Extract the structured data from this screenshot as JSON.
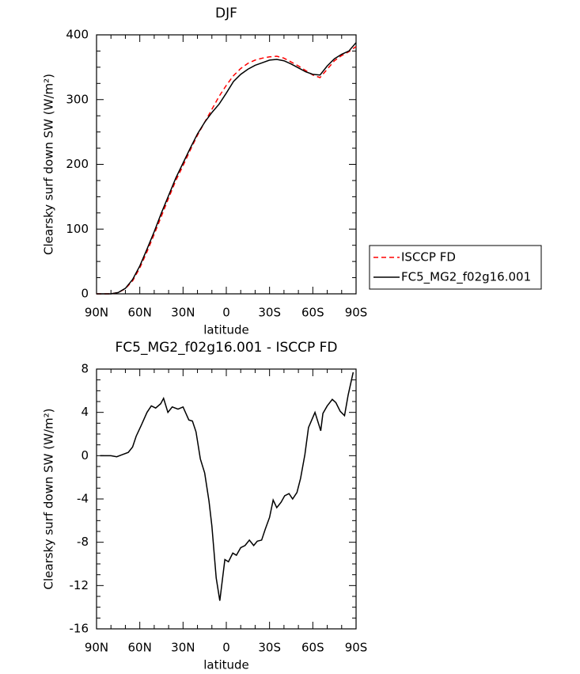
{
  "chart_data": [
    {
      "type": "line",
      "title": "DJF",
      "x_label": "latitude",
      "y_label": "Clearsky surf down SW (W/m²)",
      "x": [
        90,
        85,
        80,
        75,
        70,
        65,
        60,
        55,
        50,
        45,
        40,
        35,
        30,
        25,
        20,
        15,
        10,
        5,
        0,
        -5,
        -10,
        -15,
        -20,
        -25,
        -30,
        -35,
        -40,
        -45,
        -50,
        -55,
        -60,
        -65,
        -70,
        -75,
        -80,
        -85,
        -90
      ],
      "series": [
        {
          "name": "ISCCP FD",
          "color": "#ff0000",
          "style": "dashed",
          "values": [
            0,
            0,
            0,
            2,
            8,
            20,
            40,
            65,
            92,
            120,
            148,
            175,
            198,
            222,
            245,
            265,
            285,
            305,
            322,
            337,
            348,
            356,
            361,
            364,
            366,
            367,
            364,
            358,
            352,
            345,
            338,
            334,
            347,
            360,
            368,
            374,
            382
          ]
        },
        {
          "name": "FC5_MG2_f02g16.001",
          "color": "#000000",
          "style": "solid",
          "values": [
            0,
            0,
            0,
            2,
            8.5,
            22,
            43,
            69,
            96,
            125,
            152,
            179,
            202,
            225,
            247,
            265,
            280,
            293,
            310,
            328,
            339,
            347,
            353,
            357,
            361,
            362,
            360,
            355,
            349,
            343,
            339,
            338,
            352,
            363,
            370,
            375,
            388
          ]
        }
      ],
      "xlim": [
        90,
        -90
      ],
      "xticks": [
        {
          "value": 90,
          "label": "90N"
        },
        {
          "value": 60,
          "label": "60N"
        },
        {
          "value": 30,
          "label": "30N"
        },
        0,
        {
          "value": -30,
          "label": "30S"
        },
        {
          "value": -60,
          "label": "60S"
        },
        {
          "value": -90,
          "label": "90S"
        }
      ],
      "ylim": [
        0,
        400
      ],
      "yticks": [
        0,
        100,
        200,
        300,
        400
      ],
      "legend": "right"
    },
    {
      "type": "line",
      "title": "FC5_MG2_f02g16.001 - ISCCP FD",
      "x_label": "latitude",
      "y_label": "Clearsky surf down SW (W/m²)",
      "x": [
        87.5,
        80,
        76,
        72,
        68,
        65,
        62.5,
        59,
        55,
        52,
        49,
        45.5,
        43.5,
        40.5,
        37.5,
        33.5,
        30,
        26,
        23.5,
        21,
        18,
        15,
        12,
        10,
        7,
        4.5,
        1,
        -1.5,
        -4.5,
        -7,
        -10,
        -13,
        -16,
        -19,
        -21.5,
        -24.5,
        -27,
        -30,
        -32.5,
        -35,
        -38,
        -40.5,
        -43.5,
        -46,
        -49,
        -51.5,
        -54.5,
        -57,
        -61.5,
        -65.5,
        -67,
        -70,
        -73.5,
        -76,
        -79,
        -82,
        -84.5,
        -88
      ],
      "values": [
        0,
        0,
        -0.1,
        0.1,
        0.3,
        0.8,
        1.8,
        2.8,
        4.0,
        4.6,
        4.4,
        4.8,
        5.3,
        4.0,
        4.5,
        4.3,
        4.5,
        3.3,
        3.2,
        2.2,
        -0.3,
        -1.6,
        -4.2,
        -6.5,
        -11.3,
        -13.4,
        -9.6,
        -9.8,
        -9.0,
        -9.2,
        -8.5,
        -8.3,
        -7.8,
        -8.3,
        -7.9,
        -7.8,
        -6.8,
        -5.7,
        -4.1,
        -4.8,
        -4.3,
        -3.7,
        -3.5,
        -4.0,
        -3.4,
        -2.1,
        0.1,
        2.6,
        4.0,
        2.3,
        3.9,
        4.6,
        5.2,
        4.9,
        4.1,
        3.7,
        5.6,
        7.7
      ],
      "color": "#000000",
      "xlim": [
        90,
        -90
      ],
      "xticks": [
        {
          "value": 90,
          "label": "90N"
        },
        {
          "value": 60,
          "label": "60N"
        },
        {
          "value": 30,
          "label": "30N"
        },
        0,
        {
          "value": -30,
          "label": "30S"
        },
        {
          "value": -60,
          "label": "60S"
        },
        {
          "value": -90,
          "label": "90S"
        }
      ],
      "ylim": [
        -16,
        8
      ],
      "yticks": [
        -16,
        -12,
        -8,
        -4,
        0,
        4,
        8
      ]
    }
  ]
}
